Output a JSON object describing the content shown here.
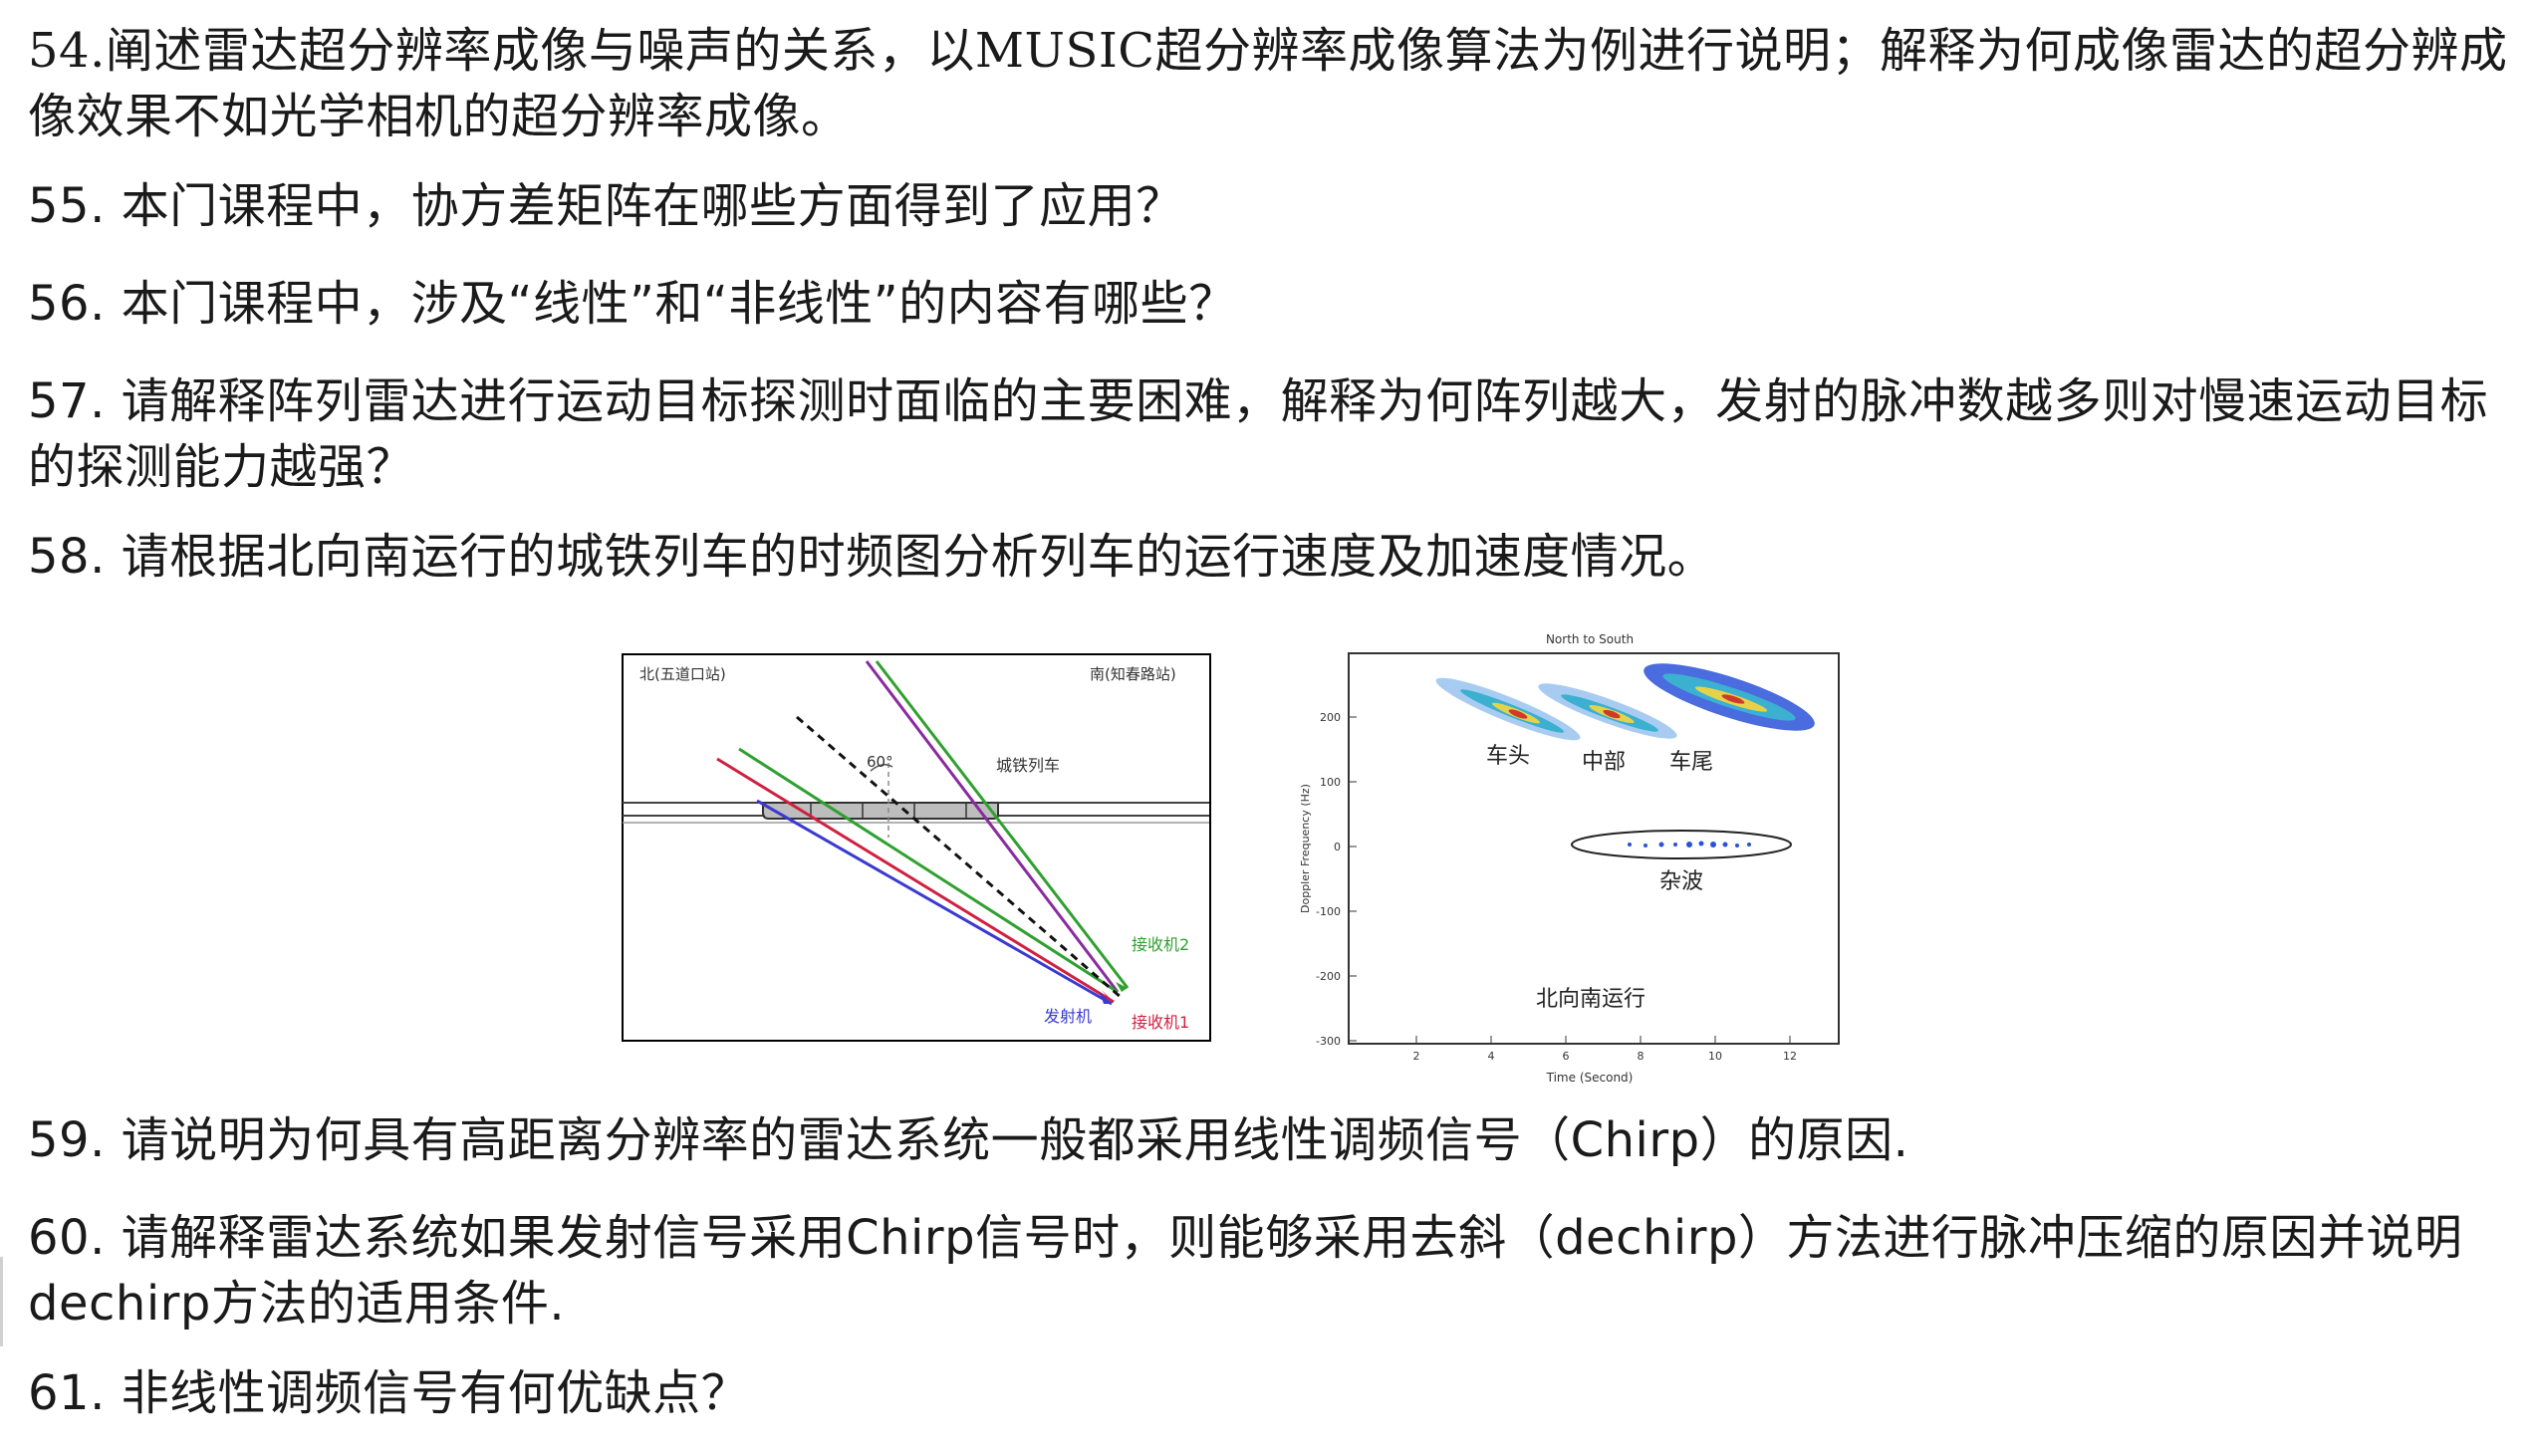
{
  "questions": {
    "q54": "54.阐述雷达超分辨率成像与噪声的关系，以MUSIC超分辨率成像算法为例进行说明；解释为何成像雷达的超分辨成像效果不如光学相机的超分辨率成像。",
    "q55": "55. 本门课程中，协方差矩阵在哪些方面得到了应用？",
    "q56": "56. 本门课程中，涉及“线性”和“非线性”的内容有哪些？",
    "q57": "57. 请解释阵列雷达进行运动目标探测时面临的主要困难，解释为何阵列越大，发射的脉冲数越多则对慢速运动目标的探测能力越强？",
    "q58": "58. 请根据北向南运行的城铁列车的时频图分析列车的运行速度及加速度情况。",
    "q59": "59. 请说明为何具有高距离分辨率的雷达系统一般都采用线性调频信号（Chirp）的原因.",
    "q60": "60. 请解释雷达系统如果发射信号采用Chirp信号时，则能够采用去斜（dechirp）方法进行脉冲压缩的原因并说明dechirp方法的适用条件.",
    "q61": "61. 非线性调频信号有何优缺点？"
  },
  "geometry_figure": {
    "north_label": "北(五道口站)",
    "south_label": "南(知春路站)",
    "angle_label": "60°",
    "train_label": "城铁列车",
    "receiver2_label": "接收机2",
    "transmitter_label": "发射机",
    "receiver1_label": "接收机1",
    "colors": {
      "transmitter": "#3a3ad0",
      "receiver1": "#d02040",
      "receiver2": "#30a030",
      "purple": "#8a2aa0",
      "black": "#111111"
    }
  },
  "spectrogram": {
    "title": "North to South",
    "xlabel": "Time (Second)",
    "ylabel": "Doppler Frequency (Hz)",
    "xticks": [
      "2",
      "4",
      "6",
      "8",
      "10",
      "12"
    ],
    "yticks": [
      "200",
      "100",
      "0",
      "-100",
      "-200",
      "-300"
    ],
    "head_label": "车头",
    "middle_label": "中部",
    "tail_label": "车尾",
    "clutter_label": "杂波",
    "direction_label": "北向南运行"
  }
}
